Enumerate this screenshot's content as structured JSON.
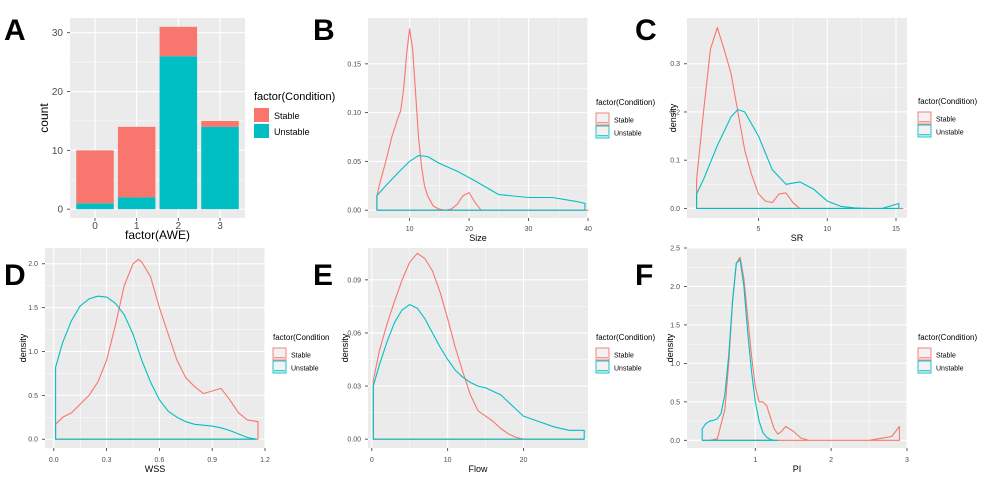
{
  "colors": {
    "stable": "#F8766D",
    "unstable": "#00BFC4",
    "panel_bg": "#EBEBEB",
    "grid": "#FFFFFF",
    "tick_text": "#4D4D4D"
  },
  "chart_data": [
    {
      "id": "A",
      "letter": "A",
      "type": "bar",
      "stacked": true,
      "categories": [
        "0",
        "1",
        "2",
        "3"
      ],
      "series": [
        {
          "name": "Stable",
          "values": [
            9,
            12,
            5,
            1
          ]
        },
        {
          "name": "Unstable",
          "values": [
            1,
            2,
            26,
            14
          ]
        }
      ],
      "xlabel": "factor(AWE)",
      "ylabel": "count",
      "ylim": [
        -1.5,
        32.5
      ],
      "yticks": [
        0,
        10,
        20,
        30
      ],
      "legend": {
        "title": "factor(Condition)",
        "entries": [
          "Stable",
          "Unstable"
        ]
      }
    },
    {
      "id": "B",
      "letter": "B",
      "type": "line",
      "xlabel": "Size",
      "ylabel": "",
      "xlim": [
        3,
        40
      ],
      "ylim": [
        -0.008,
        0.197
      ],
      "xticks": [
        10,
        20,
        30,
        40
      ],
      "yticks": [
        0.0,
        0.05,
        0.1,
        0.15
      ],
      "ytick_labels": [
        "0.00",
        "0.05",
        "0.10",
        "0.15"
      ],
      "series": [
        {
          "name": "Stable",
          "x": [
            4.5,
            5,
            6,
            7,
            8,
            8.5,
            9,
            9.5,
            10,
            10.5,
            11,
            11.5,
            12,
            12.5,
            13,
            14,
            15,
            16,
            17,
            18,
            19,
            20,
            21,
            22,
            40
          ],
          "y": [
            0.015,
            0.028,
            0.05,
            0.075,
            0.094,
            0.102,
            0.125,
            0.16,
            0.186,
            0.165,
            0.12,
            0.075,
            0.045,
            0.025,
            0.015,
            0.004,
            0.001,
            0.0,
            0.001,
            0.006,
            0.015,
            0.018,
            0.008,
            0.0,
            0.0
          ]
        },
        {
          "name": "Unstable",
          "x": [
            4.5,
            6,
            8,
            10,
            11.5,
            13,
            15,
            18,
            21,
            25,
            30,
            34,
            38,
            39.5
          ],
          "y": [
            0.015,
            0.025,
            0.038,
            0.05,
            0.056,
            0.055,
            0.048,
            0.04,
            0.03,
            0.016,
            0.013,
            0.013,
            0.009,
            0.007
          ]
        }
      ],
      "legend": {
        "title": "factor(Condition)",
        "entries": [
          "Stable",
          "Unstable"
        ]
      }
    },
    {
      "id": "C",
      "letter": "C",
      "type": "line",
      "xlabel": "SR",
      "ylabel": "density",
      "xlim": [
        -0.2,
        15.8
      ],
      "ylim": [
        -0.02,
        0.395
      ],
      "xticks": [
        5,
        10,
        15
      ],
      "yticks": [
        0.0,
        0.1,
        0.2,
        0.3
      ],
      "ytick_labels": [
        "0.0",
        "0.1",
        "0.2",
        "0.3"
      ],
      "series": [
        {
          "name": "Stable",
          "x": [
            0.5,
            1,
            1.5,
            2,
            2.5,
            3,
            3.5,
            4,
            4.5,
            5,
            5.5,
            6,
            6.5,
            7,
            7.5,
            8,
            15.5
          ],
          "y": [
            0.06,
            0.2,
            0.33,
            0.375,
            0.33,
            0.28,
            0.2,
            0.12,
            0.07,
            0.03,
            0.015,
            0.012,
            0.03,
            0.032,
            0.012,
            0.0,
            0.0
          ]
        },
        {
          "name": "Unstable",
          "x": [
            0.5,
            1,
            2,
            3,
            3.5,
            4,
            5,
            6,
            7,
            8,
            9,
            10,
            11,
            12,
            13,
            14,
            15.2
          ],
          "y": [
            0.03,
            0.06,
            0.13,
            0.19,
            0.205,
            0.2,
            0.15,
            0.08,
            0.05,
            0.055,
            0.04,
            0.015,
            0.004,
            0.001,
            0.0,
            0.0,
            0.01
          ]
        }
      ],
      "legend": {
        "title": "factor(Condition)",
        "entries": [
          "Stable",
          "Unstable"
        ]
      }
    },
    {
      "id": "D",
      "letter": "D",
      "type": "line",
      "xlabel": "WSS",
      "ylabel": "density",
      "xlim": [
        -0.05,
        1.2
      ],
      "ylim": [
        -0.1,
        2.18
      ],
      "xticks": [
        0.0,
        0.3,
        0.6,
        0.9,
        1.2
      ],
      "yticks": [
        0.0,
        0.5,
        1.0,
        1.5,
        2.0
      ],
      "xtick_labels": [
        "0.0",
        "0.3",
        "0.6",
        "0.9",
        "1.2"
      ],
      "ytick_labels": [
        "0.0",
        "0.5",
        "1.0",
        "1.5",
        "2.0"
      ],
      "series": [
        {
          "name": "Stable",
          "x": [
            0.01,
            0.05,
            0.1,
            0.15,
            0.2,
            0.25,
            0.3,
            0.35,
            0.4,
            0.45,
            0.48,
            0.5,
            0.55,
            0.6,
            0.65,
            0.7,
            0.75,
            0.8,
            0.85,
            0.9,
            0.95,
            1.0,
            1.05,
            1.1,
            1.16
          ],
          "y": [
            0.17,
            0.25,
            0.3,
            0.4,
            0.5,
            0.65,
            0.9,
            1.3,
            1.75,
            2.0,
            2.05,
            2.02,
            1.85,
            1.5,
            1.2,
            0.9,
            0.7,
            0.6,
            0.52,
            0.55,
            0.58,
            0.45,
            0.3,
            0.22,
            0.2
          ]
        },
        {
          "name": "Unstable",
          "x": [
            0.01,
            0.05,
            0.1,
            0.15,
            0.2,
            0.25,
            0.3,
            0.35,
            0.4,
            0.45,
            0.5,
            0.55,
            0.6,
            0.65,
            0.7,
            0.75,
            0.8,
            0.85,
            0.9,
            0.95,
            1.0,
            1.05,
            1.1,
            1.15
          ],
          "y": [
            0.82,
            1.1,
            1.35,
            1.52,
            1.6,
            1.63,
            1.62,
            1.55,
            1.42,
            1.2,
            0.9,
            0.65,
            0.45,
            0.32,
            0.25,
            0.2,
            0.17,
            0.16,
            0.15,
            0.13,
            0.1,
            0.06,
            0.02,
            0.0
          ]
        }
      ],
      "legend": {
        "title": "factor(Condition",
        "entries": [
          "Stable",
          "Unstable"
        ]
      }
    },
    {
      "id": "E",
      "letter": "E",
      "type": "line",
      "xlabel": "Flow",
      "ylabel": "density",
      "xlim": [
        -0.5,
        28.5
      ],
      "ylim": [
        -0.005,
        0.108
      ],
      "xticks": [
        0,
        10,
        20
      ],
      "yticks": [
        0.0,
        0.03,
        0.06,
        0.09
      ],
      "ytick_labels": [
        "0.00",
        "0.03",
        "0.06",
        "0.09"
      ],
      "series": [
        {
          "name": "Stable",
          "x": [
            0.2,
            1,
            2,
            3,
            4,
            5,
            6,
            7,
            8,
            9,
            10,
            11,
            12,
            13,
            14,
            15,
            16,
            17,
            18,
            19,
            20,
            28
          ],
          "y": [
            0.033,
            0.05,
            0.065,
            0.078,
            0.09,
            0.1,
            0.105,
            0.102,
            0.095,
            0.083,
            0.068,
            0.052,
            0.038,
            0.025,
            0.016,
            0.013,
            0.01,
            0.006,
            0.003,
            0.001,
            0.0,
            0.0
          ]
        },
        {
          "name": "Unstable",
          "x": [
            0.2,
            1,
            2,
            3,
            4,
            5,
            6,
            7,
            8,
            9,
            10,
            11,
            12,
            13,
            14,
            15,
            16,
            17,
            18,
            19,
            20,
            22,
            24,
            26,
            28
          ],
          "y": [
            0.03,
            0.042,
            0.055,
            0.066,
            0.073,
            0.076,
            0.074,
            0.068,
            0.06,
            0.052,
            0.045,
            0.039,
            0.035,
            0.032,
            0.03,
            0.029,
            0.027,
            0.025,
            0.021,
            0.017,
            0.013,
            0.01,
            0.007,
            0.005,
            0.005
          ]
        }
      ],
      "legend": {
        "title": "factor(Condition)",
        "entries": [
          "Stable",
          "Unstable"
        ]
      }
    },
    {
      "id": "F",
      "letter": "F",
      "type": "line",
      "xlabel": "PI",
      "ylabel": "density",
      "xlim": [
        0.1,
        3.0
      ],
      "ylim": [
        -0.1,
        2.5
      ],
      "xticks": [
        1,
        2,
        3
      ],
      "yticks": [
        0.0,
        0.5,
        1.0,
        1.5,
        2.0,
        2.5
      ],
      "ytick_labels": [
        "0.0",
        "0.5",
        "1.0",
        "1.5",
        "2.0",
        "2.5"
      ],
      "series": [
        {
          "name": "Stable",
          "x": [
            0.3,
            0.4,
            0.5,
            0.6,
            0.65,
            0.7,
            0.75,
            0.8,
            0.85,
            0.9,
            0.95,
            1.0,
            1.05,
            1.1,
            1.15,
            1.2,
            1.25,
            1.3,
            1.35,
            1.4,
            1.5,
            1.6,
            1.7,
            2.0,
            2.5,
            2.8,
            2.9
          ],
          "y": [
            0.0,
            0.0,
            0.02,
            0.4,
            1.0,
            1.8,
            2.3,
            2.38,
            2.1,
            1.6,
            1.1,
            0.7,
            0.5,
            0.5,
            0.45,
            0.3,
            0.15,
            0.08,
            0.12,
            0.18,
            0.12,
            0.03,
            0.0,
            0.0,
            0.0,
            0.05,
            0.18
          ]
        },
        {
          "name": "Unstable",
          "x": [
            0.3,
            0.35,
            0.4,
            0.45,
            0.5,
            0.55,
            0.6,
            0.65,
            0.7,
            0.75,
            0.8,
            0.85,
            0.9,
            0.95,
            1.0,
            1.05,
            1.1,
            1.15,
            1.2,
            1.25,
            1.3
          ],
          "y": [
            0.15,
            0.22,
            0.25,
            0.26,
            0.28,
            0.35,
            0.6,
            1.1,
            1.8,
            2.3,
            2.35,
            2.0,
            1.4,
            0.9,
            0.5,
            0.25,
            0.1,
            0.04,
            0.01,
            0.0,
            0.0
          ]
        }
      ],
      "legend": {
        "title": "factor(Condition)",
        "entries": [
          "Stable",
          "Unstable"
        ]
      }
    }
  ]
}
